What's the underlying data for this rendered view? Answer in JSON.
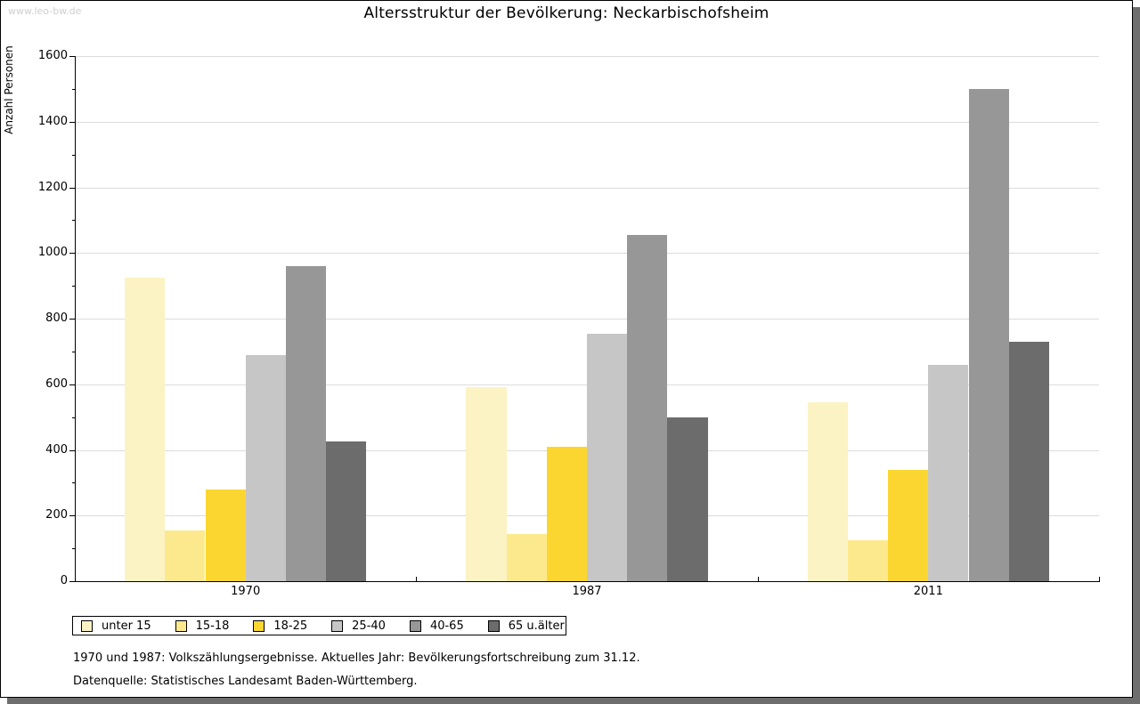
{
  "watermark": "www.leo-bw.de",
  "title": "Altersstruktur der Bevölkerung: Neckarbischofsheim",
  "chart_data": {
    "type": "bar",
    "grouped": true,
    "title": "Altersstruktur der Bevölkerung: Neckarbischofsheim",
    "ylabel": "Anzahl Personen",
    "xlabel": "",
    "ylim": [
      0,
      1600
    ],
    "ytick_step": 200,
    "ytick_minor_step": 100,
    "grid": true,
    "legend_position": "bottom",
    "categories": [
      "1970",
      "1987",
      "2011"
    ],
    "series": [
      {
        "name": "unter 15",
        "color": "#FBF3C4",
        "values": [
          925,
          590,
          545
        ]
      },
      {
        "name": "15-18",
        "color": "#FCE98D",
        "values": [
          155,
          145,
          125
        ]
      },
      {
        "name": "18-25",
        "color": "#FCD630",
        "values": [
          280,
          410,
          340
        ]
      },
      {
        "name": "25-40",
        "color": "#C6C6C6",
        "values": [
          690,
          755,
          660
        ]
      },
      {
        "name": "40-65",
        "color": "#979797",
        "values": [
          960,
          1055,
          1500
        ]
      },
      {
        "name": "65 u.älter",
        "color": "#6C6C6C",
        "values": [
          425,
          500,
          730
        ]
      }
    ]
  },
  "footer": {
    "line1": "1970 und 1987: Volkszählungsergebnisse. Aktuelles Jahr: Bevölkerungsfortschreibung zum 31.12.",
    "line2": "Datenquelle: Statistisches Landesamt Baden-Württemberg."
  }
}
